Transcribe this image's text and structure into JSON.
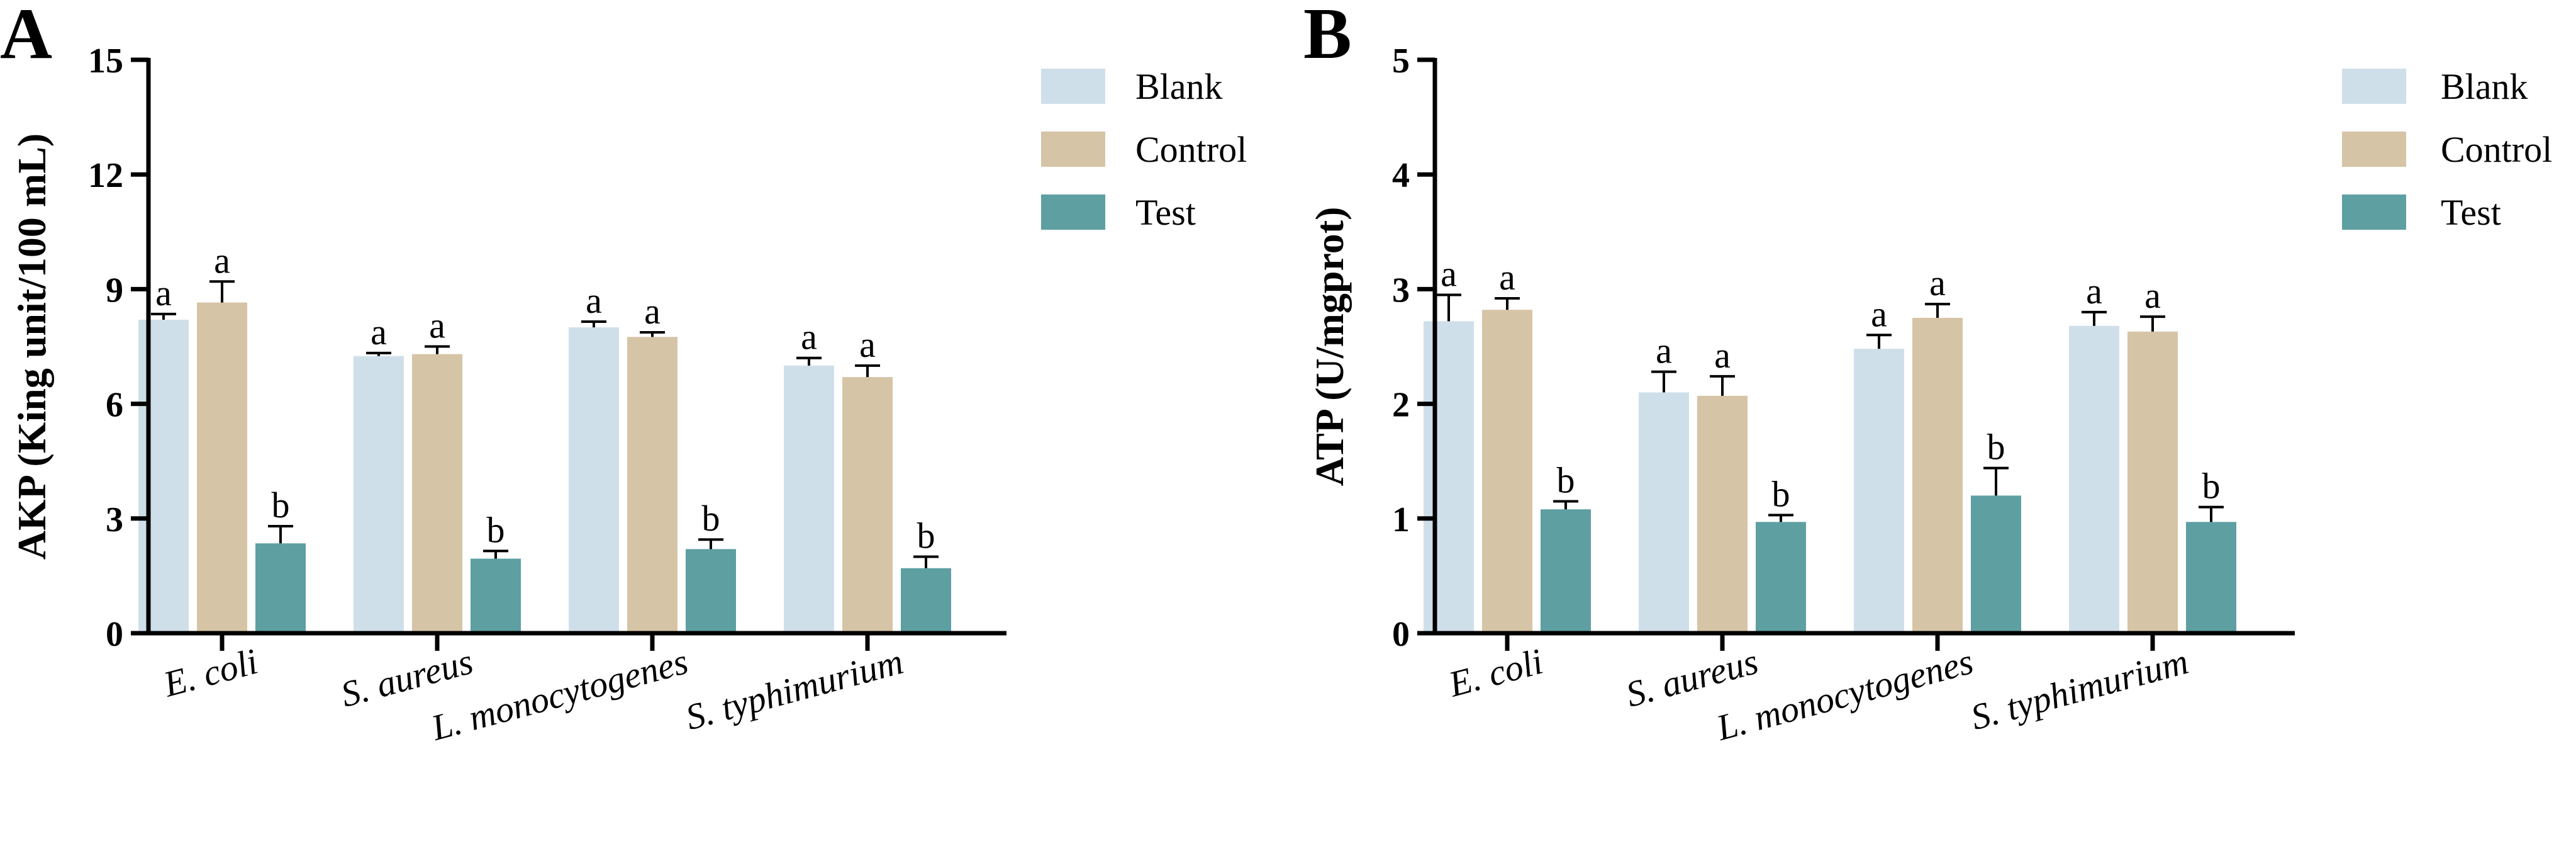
{
  "figure": {
    "panels": [
      "A",
      "B"
    ]
  },
  "chart_data": [
    {
      "type": "bar",
      "panel": "A",
      "title": "",
      "xlabel": "",
      "ylabel": "AKP (King unit/100 mL)",
      "ylim": [
        0,
        15
      ],
      "yticks": [
        "0",
        "3",
        "6",
        "9",
        "12",
        "15"
      ],
      "categories": [
        "E. coli",
        "S. aureus",
        "L. monocytogenes",
        "S. typhimurium"
      ],
      "series": [
        {
          "name": "Blank",
          "color": "#CFDFEA",
          "values": [
            8.2,
            7.25,
            8.0,
            7.0
          ],
          "errors": [
            0.15,
            0.08,
            0.15,
            0.2
          ],
          "labels": [
            "a",
            "a",
            "a",
            "a"
          ]
        },
        {
          "name": "Control",
          "color": "#D6C4A6",
          "values": [
            8.65,
            7.3,
            7.75,
            6.7
          ],
          "errors": [
            0.55,
            0.2,
            0.12,
            0.3
          ],
          "labels": [
            "a",
            "a",
            "a",
            "a"
          ]
        },
        {
          "name": "Test",
          "color": "#5E9FA2",
          "values": [
            2.35,
            1.95,
            2.2,
            1.7
          ],
          "errors": [
            0.45,
            0.2,
            0.25,
            0.3
          ],
          "labels": [
            "b",
            "b",
            "b",
            "b"
          ]
        }
      ],
      "legend": [
        "Blank",
        "Control",
        "Test"
      ],
      "legend_position": "top-right"
    },
    {
      "type": "bar",
      "panel": "B",
      "title": "",
      "xlabel": "",
      "ylabel": "ATP (U/mgprot)",
      "ylim": [
        0,
        5
      ],
      "yticks": [
        "0",
        "1",
        "2",
        "3",
        "4",
        "5"
      ],
      "categories": [
        "E. coli",
        "S. aureus",
        "L. monocytogenes",
        "S. typhimurium"
      ],
      "series": [
        {
          "name": "Blank",
          "color": "#CFDFEA",
          "values": [
            2.72,
            2.1,
            2.48,
            2.68
          ],
          "errors": [
            0.23,
            0.18,
            0.12,
            0.12
          ],
          "labels": [
            "a",
            "a",
            "a",
            "a"
          ]
        },
        {
          "name": "Control",
          "color": "#D6C4A6",
          "values": [
            2.82,
            2.07,
            2.75,
            2.63
          ],
          "errors": [
            0.1,
            0.17,
            0.12,
            0.13
          ],
          "labels": [
            "a",
            "a",
            "a",
            "a"
          ]
        },
        {
          "name": "Test",
          "color": "#5E9FA2",
          "values": [
            1.08,
            0.97,
            1.2,
            0.97
          ],
          "errors": [
            0.07,
            0.06,
            0.24,
            0.13
          ],
          "labels": [
            "b",
            "b",
            "b",
            "b"
          ]
        }
      ],
      "legend": [
        "Blank",
        "Control",
        "Test"
      ],
      "legend_position": "top-right"
    }
  ]
}
